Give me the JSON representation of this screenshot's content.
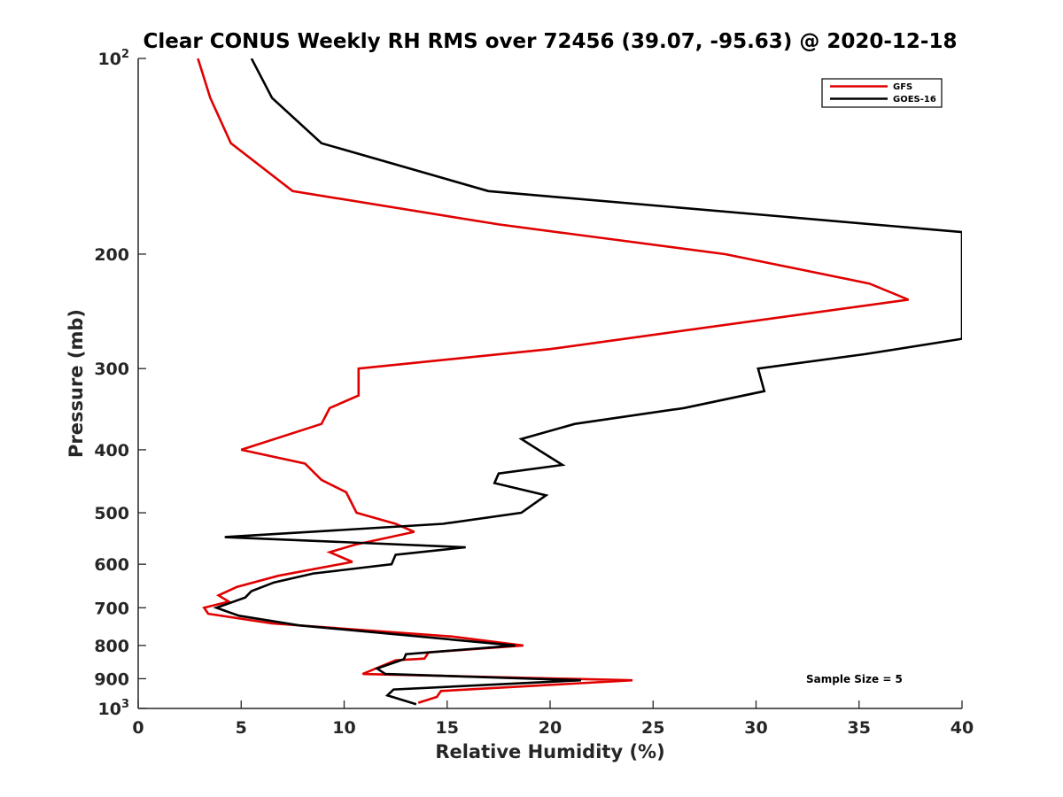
{
  "chart_data": {
    "type": "line",
    "title": "Clear CONUS Weekly RH RMS over 72456 (39.07, -95.63) @ 2020-12-18",
    "xlabel": "Relative Humidity (%)",
    "ylabel": "Pressure (mb)",
    "xlim": [
      0,
      40
    ],
    "ylim": [
      100,
      1000
    ],
    "yscale": "log",
    "yreversed": true,
    "xticks": [
      0,
      5,
      10,
      15,
      20,
      25,
      30,
      35,
      40
    ],
    "xtick_labels": [
      "0",
      "5",
      "10",
      "15",
      "20",
      "25",
      "30",
      "35",
      "40"
    ],
    "yticks": [
      100,
      200,
      300,
      400,
      500,
      600,
      700,
      800,
      900,
      1000
    ],
    "ytick_labels": [
      {
        "base": "10",
        "exp": "2"
      },
      {
        "base": "200",
        "exp": ""
      },
      {
        "base": "300",
        "exp": ""
      },
      {
        "base": "400",
        "exp": ""
      },
      {
        "base": "500",
        "exp": ""
      },
      {
        "base": "600",
        "exp": ""
      },
      {
        "base": "700",
        "exp": ""
      },
      {
        "base": "800",
        "exp": ""
      },
      {
        "base": "900",
        "exp": ""
      },
      {
        "base": "10",
        "exp": "3"
      }
    ],
    "legend_location": "top-right",
    "annotation": "Sample Size = 5",
    "series": [
      {
        "name": "GFS",
        "color": "#e00000",
        "x": [
          2.9,
          3.5,
          4.5,
          7.5,
          17.5,
          28.5,
          35.5,
          37.4,
          20.0,
          10.7,
          10.7,
          9.3,
          8.9,
          5.0,
          8.1,
          8.9,
          10.1,
          10.6,
          12.5,
          13.4,
          10.5,
          9.3,
          10.4,
          6.8,
          4.8,
          3.9,
          4.4,
          3.2,
          3.4,
          6.5,
          15.2,
          18.7,
          14.1,
          13.9,
          12.5,
          10.9,
          24.0,
          14.7,
          14.5,
          13.6
        ],
        "y": [
          100,
          115,
          135,
          160,
          180,
          200,
          222,
          235,
          280,
          300,
          330,
          345,
          365,
          400,
          420,
          445,
          465,
          500,
          520,
          535,
          560,
          575,
          595,
          625,
          650,
          670,
          685,
          700,
          715,
          740,
          775,
          800,
          820,
          838,
          843,
          885,
          905,
          940,
          960,
          980
        ]
      },
      {
        "name": "GOES-16",
        "color": "#000000",
        "x": [
          5.5,
          6.5,
          8.9,
          17.0,
          40.0,
          40.0,
          35.3,
          30.1,
          30.4,
          26.5,
          21.2,
          18.6,
          19.7,
          20.6,
          17.5,
          17.3,
          19.8,
          18.6,
          14.8,
          4.2,
          15.9,
          12.5,
          12.3,
          8.5,
          6.6,
          5.5,
          5.2,
          3.8,
          4.9,
          7.8,
          12.7,
          18.3,
          13.0,
          12.9,
          11.6,
          12.0,
          21.5,
          12.4,
          12.1,
          13.5
        ],
        "y": [
          100,
          115,
          135,
          160,
          185,
          270,
          285,
          300,
          325,
          345,
          365,
          385,
          405,
          422,
          435,
          450,
          470,
          500,
          520,
          545,
          565,
          580,
          600,
          620,
          640,
          660,
          675,
          700,
          720,
          745,
          770,
          800,
          825,
          840,
          868,
          885,
          905,
          935,
          955,
          985
        ]
      }
    ]
  }
}
